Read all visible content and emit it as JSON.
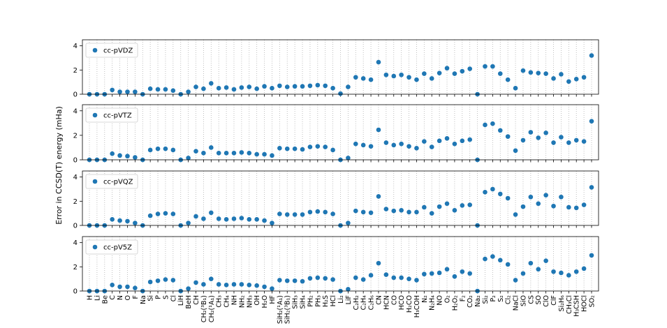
{
  "ylabel": "Error in CCSD(T) energy (mHa)",
  "chart_data": [
    {
      "type": "scatter",
      "ylim": [
        0,
        4.5
      ],
      "yticks": [
        0,
        2,
        4
      ],
      "grid": true,
      "legend": "upper left",
      "series": [
        {
          "name": "cc-pVDZ",
          "color": "#1f77b4",
          "values": [
            0,
            0,
            0,
            0.35,
            0.2,
            0.2,
            0.2,
            0,
            0.45,
            0.4,
            0.4,
            0.3,
            0,
            0.2,
            0.6,
            0.45,
            0.9,
            0.5,
            0.55,
            0.4,
            0.55,
            0.6,
            0.45,
            0.65,
            0.5,
            0.7,
            0.6,
            0.65,
            0.65,
            0.7,
            0.75,
            0.7,
            0.5,
            0.05,
            0.6,
            1.4,
            1.3,
            1.2,
            2.65,
            1.6,
            1.5,
            1.6,
            1.4,
            1.2,
            1.7,
            1.3,
            1.75,
            2.15,
            1.7,
            1.9,
            2.1,
            0,
            2.3,
            2.3,
            1.7,
            1.2,
            0.5,
            1.95,
            1.8,
            1.75,
            1.7,
            1.3,
            1.65,
            1.05,
            1.25,
            1.4,
            3.2
          ]
        }
      ]
    },
    {
      "type": "scatter",
      "ylim": [
        0,
        4.5
      ],
      "yticks": [
        0,
        2,
        4
      ],
      "grid": true,
      "legend": "upper left",
      "series": [
        {
          "name": "cc-pVTZ",
          "color": "#1f77b4",
          "values": [
            0,
            0,
            0,
            0.5,
            0.35,
            0.3,
            0.2,
            0,
            0.8,
            0.9,
            0.9,
            0.8,
            0,
            0.15,
            0.7,
            0.55,
            1.0,
            0.55,
            0.55,
            0.55,
            0.6,
            0.55,
            0.45,
            0.45,
            0.35,
            0.95,
            0.9,
            0.9,
            0.85,
            1.05,
            1.1,
            1.05,
            0.8,
            0,
            0.15,
            1.3,
            1.2,
            1.1,
            2.45,
            1.4,
            1.2,
            1.3,
            1.1,
            0.95,
            1.5,
            1.05,
            1.55,
            1.75,
            1.3,
            1.55,
            1.65,
            0,
            2.85,
            2.95,
            2.4,
            1.9,
            0.75,
            1.6,
            2.25,
            1.8,
            2.2,
            1.4,
            1.85,
            1.4,
            1.6,
            1.5,
            3.15
          ]
        }
      ]
    },
    {
      "type": "scatter",
      "ylim": [
        0,
        4.5
      ],
      "yticks": [
        0,
        2,
        4
      ],
      "grid": true,
      "legend": "upper left",
      "series": [
        {
          "name": "cc-pVQZ",
          "color": "#1f77b4",
          "values": [
            0,
            0,
            0,
            0.5,
            0.4,
            0.35,
            0.2,
            0,
            0.8,
            0.95,
            1.0,
            0.95,
            0,
            0.2,
            0.75,
            0.55,
            1.05,
            0.55,
            0.5,
            0.55,
            0.6,
            0.5,
            0.5,
            0.4,
            0.2,
            0.95,
            0.9,
            0.9,
            0.9,
            1.1,
            1.15,
            1.1,
            0.95,
            0,
            0.2,
            1.2,
            1.1,
            1.05,
            2.4,
            1.35,
            1.2,
            1.25,
            1.1,
            1.1,
            1.5,
            1.0,
            1.55,
            1.8,
            1.25,
            1.65,
            1.7,
            0,
            2.75,
            3.0,
            2.6,
            2.25,
            0.9,
            1.55,
            2.35,
            1.8,
            2.5,
            1.6,
            2.35,
            1.5,
            1.45,
            1.7,
            3.15
          ]
        }
      ]
    },
    {
      "type": "scatter",
      "ylim": [
        0,
        4.5
      ],
      "yticks": [
        0,
        2,
        4
      ],
      "grid": true,
      "legend": "upper left",
      "categories": [
        "H",
        "Li",
        "Be",
        "C",
        "N",
        "O",
        "F",
        "Na",
        "Si",
        "P",
        "S",
        "Cl",
        "LiH",
        "BeH",
        "CH",
        "CH₂(³B₁)",
        "CH₂(¹A₁)",
        "CH₃",
        "CH₄",
        "NH",
        "NH₂",
        "NH₃",
        "OH",
        "H₂O",
        "HF",
        "SiH₂(¹A₁)",
        "SiH₂(³B₁)",
        "SiH₃",
        "SiH₄",
        "PH₂",
        "PH₃",
        "H₂S",
        "HCl",
        "Li₂",
        "LiF",
        "C₂H₂",
        "C₂H₄",
        "C₂H₆",
        "CN",
        "HCN",
        "CO",
        "HCO",
        "H₂CO",
        "H₃COH",
        "N₂",
        "N₂H₄",
        "NO",
        "O₂",
        "H₂O₂",
        "F₂",
        "CO₂",
        "Na₂",
        "Si₂",
        "P₂",
        "S₂",
        "Cl₂",
        "NaCl",
        "SiO",
        "CS",
        "SO",
        "ClO",
        "ClF",
        "Si₂H₆",
        "CH₃Cl",
        "H₃CSH",
        "HOCl",
        "SO₂"
      ],
      "series": [
        {
          "name": "cc-pV5Z",
          "color": "#1f77b4",
          "values": [
            0,
            0,
            0,
            0.5,
            0.35,
            0.35,
            0.25,
            0,
            0.75,
            0.85,
            0.95,
            0.9,
            0,
            0.2,
            0.7,
            0.55,
            1.0,
            0.55,
            0.5,
            0.55,
            0.55,
            0.5,
            0.45,
            0.35,
            0.2,
            0.9,
            0.85,
            0.85,
            0.8,
            1.05,
            1.1,
            1.05,
            0.95,
            0,
            0.15,
            1.1,
            0.95,
            1.3,
            2.3,
            1.35,
            1.1,
            1.1,
            1.0,
            0.9,
            1.4,
            1.45,
            1.5,
            1.8,
            1.2,
            1.6,
            1.45,
            0,
            2.65,
            2.85,
            2.55,
            2.2,
            0.9,
            1.45,
            2.3,
            1.8,
            2.5,
            1.6,
            1.5,
            1.3,
            1.6,
            1.85,
            2.95
          ]
        }
      ]
    }
  ]
}
